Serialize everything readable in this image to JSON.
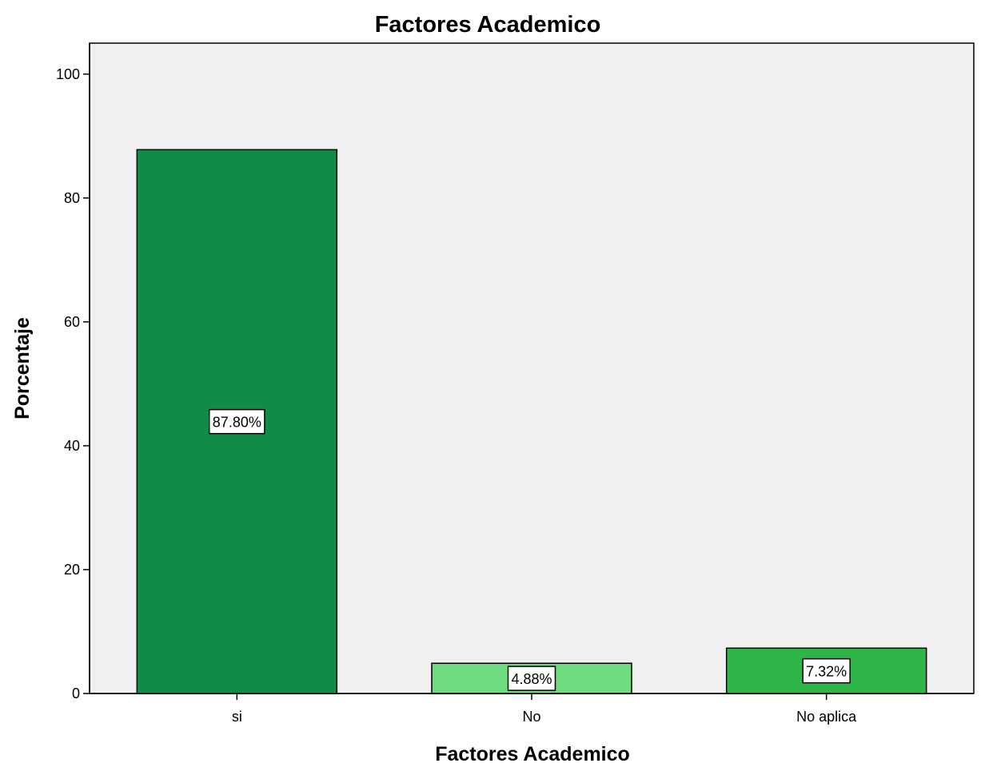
{
  "chart_data": {
    "type": "bar",
    "title": "Factores Academico",
    "xlabel": "Factores Academico",
    "ylabel": "Porcentaje",
    "categories": [
      "si",
      "No",
      "No aplica"
    ],
    "values": [
      87.8,
      4.88,
      7.32
    ],
    "data_labels": [
      "87.80%",
      "4.88%",
      "7.32%"
    ],
    "colors": [
      "#118c48",
      "#6fdc82",
      "#2fb548"
    ],
    "ylim": [
      0,
      105
    ],
    "yticks": [
      0,
      20,
      40,
      60,
      80,
      100
    ],
    "grid": false,
    "legend": "none"
  }
}
